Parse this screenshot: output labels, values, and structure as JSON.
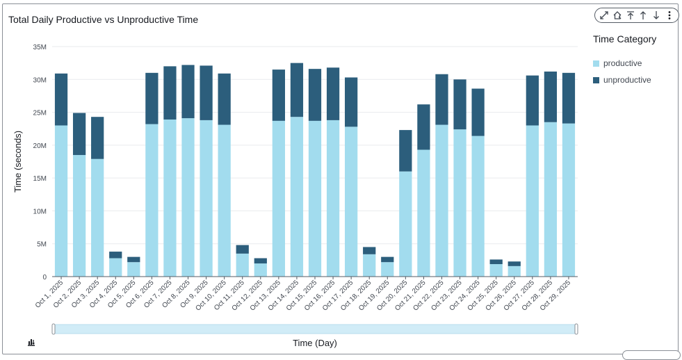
{
  "chart_data": {
    "type": "bar",
    "stacked": true,
    "title": "Total Daily Productive vs Unproductive Time",
    "xlabel": "Time (Day)",
    "ylabel": "Time (seconds)",
    "ylim": [
      0,
      35000000
    ],
    "yticks": [
      0,
      5000000,
      10000000,
      15000000,
      20000000,
      25000000,
      30000000,
      35000000
    ],
    "ytick_labels": [
      "0",
      "5M",
      "10M",
      "15M",
      "20M",
      "25M",
      "30M",
      "35M"
    ],
    "grid": true,
    "legend_title": "Time Category",
    "legend_position": "right",
    "categories": [
      "Oct 1, 2025",
      "Oct 2, 2025",
      "Oct 3, 2025",
      "Oct 4, 2025",
      "Oct 5, 2025",
      "Oct 6, 2025",
      "Oct 7, 2025",
      "Oct 8, 2025",
      "Oct 9, 2025",
      "Oct 10, 2025",
      "Oct 11, 2025",
      "Oct 12, 2025",
      "Oct 13, 2025",
      "Oct 14, 2025",
      "Oct 15, 2025",
      "Oct 16, 2025",
      "Oct 17, 2025",
      "Oct 18, 2025",
      "Oct 19, 2025",
      "Oct 20, 2025",
      "Oct 21, 2025",
      "Oct 22, 2025",
      "Oct 23, 2025",
      "Oct 24, 2025",
      "Oct 25, 2025",
      "Oct 26, 2025",
      "Oct 27, 2025",
      "Oct 28, 2025",
      "Oct 29, 2025"
    ],
    "series": [
      {
        "name": "productive",
        "color": "#a2dcee",
        "values": [
          23000000,
          18500000,
          17900000,
          2800000,
          2200000,
          23200000,
          23900000,
          24100000,
          23800000,
          23100000,
          3500000,
          2000000,
          23700000,
          24300000,
          23700000,
          23800000,
          22800000,
          3400000,
          2200000,
          16000000,
          19300000,
          23100000,
          22400000,
          21400000,
          1900000,
          1600000,
          23000000,
          23500000,
          23300000
        ]
      },
      {
        "name": "unproductive",
        "color": "#2c5e7c",
        "values": [
          7900000,
          6400000,
          6400000,
          1000000,
          800000,
          7800000,
          8100000,
          8100000,
          8300000,
          7800000,
          1300000,
          800000,
          7800000,
          8200000,
          7900000,
          8000000,
          7500000,
          1100000,
          800000,
          6300000,
          6900000,
          7700000,
          7600000,
          7200000,
          700000,
          700000,
          7600000,
          7700000,
          7700000
        ]
      }
    ]
  },
  "toolbar": {
    "icons": [
      "expand-icon",
      "home-icon",
      "drill-to-top-icon",
      "drill-up-icon",
      "drill-down-icon",
      "more-options-icon"
    ]
  },
  "colors": {
    "axis": "#545b64",
    "grid": "#e9ebed",
    "range_bar": "#d1ecf7"
  }
}
